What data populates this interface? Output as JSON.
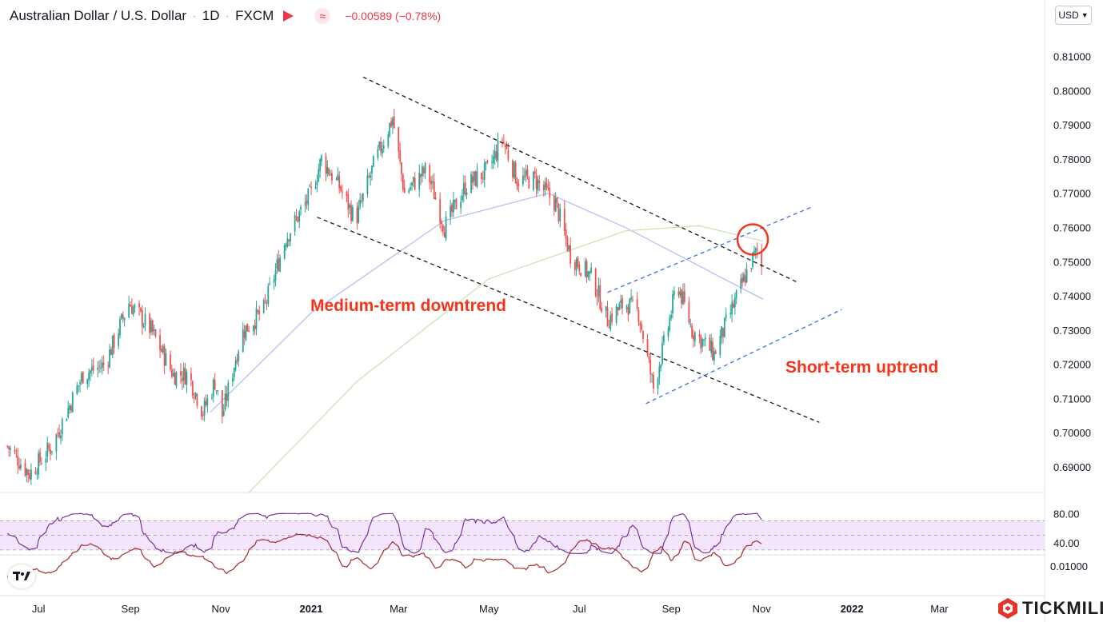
{
  "header": {
    "symbol": "Australian Dollar / U.S. Dollar",
    "interval": "1D",
    "exchange": "FXCM",
    "change": "−0.00589 (−0.78%)"
  },
  "currency_button": "USD",
  "brand": "TICKMILL",
  "colors": {
    "up": "#26a69a",
    "down": "#ef5350",
    "rsi": "#7e2fa1",
    "rsi_band": "#f3e5fb",
    "osc": "#a52b2b",
    "annotation": "#f5351b",
    "trend_black": "#000000",
    "trend_blue": "#2962ff",
    "highlight_circle": "#f5351b"
  },
  "chart_data": [
    {
      "type": "candlestick",
      "title": "Australian Dollar / U.S. Dollar",
      "x_tick_labels": [
        "Jul",
        "Sep",
        "Nov",
        "2021",
        "Mar",
        "May",
        "Jul",
        "Sep",
        "Nov",
        "2022",
        "Mar"
      ],
      "y_tick_labels": [
        "0.69000",
        "0.70000",
        "0.71000",
        "0.72000",
        "0.73000",
        "0.74000",
        "0.75000",
        "0.76000",
        "0.77000",
        "0.78000",
        "0.79000",
        "0.80000",
        "0.81000"
      ],
      "ylim": [
        0.6825,
        0.8195
      ],
      "anchor_closes": [
        [
          "2020-06-10",
          0.696
        ],
        [
          "2020-06-25",
          0.688
        ],
        [
          "2020-07-10",
          0.696
        ],
        [
          "2020-07-31",
          0.717
        ],
        [
          "2020-08-15",
          0.72
        ],
        [
          "2020-08-31",
          0.738
        ],
        [
          "2020-09-15",
          0.73
        ],
        [
          "2020-09-30",
          0.717
        ],
        [
          "2020-10-10",
          0.717
        ],
        [
          "2020-10-20",
          0.706
        ],
        [
          "2020-10-28",
          0.715
        ],
        [
          "2020-11-02",
          0.705
        ],
        [
          "2020-11-15",
          0.729
        ],
        [
          "2020-11-30",
          0.736
        ],
        [
          "2020-12-15",
          0.757
        ],
        [
          "2021-01-01",
          0.77
        ],
        [
          "2021-01-08",
          0.78
        ],
        [
          "2021-01-20",
          0.772
        ],
        [
          "2021-01-31",
          0.762
        ],
        [
          "2021-02-12",
          0.778
        ],
        [
          "2021-02-25",
          0.792
        ],
        [
          "2021-03-05",
          0.77
        ],
        [
          "2021-03-20",
          0.777
        ],
        [
          "2021-04-01",
          0.76
        ],
        [
          "2021-04-15",
          0.772
        ],
        [
          "2021-05-01",
          0.777
        ],
        [
          "2021-05-10",
          0.786
        ],
        [
          "2021-05-20",
          0.774
        ],
        [
          "2021-06-01",
          0.774
        ],
        [
          "2021-06-15",
          0.767
        ],
        [
          "2021-06-25",
          0.752
        ],
        [
          "2021-07-10",
          0.745
        ],
        [
          "2021-07-20",
          0.733
        ],
        [
          "2021-08-01",
          0.738
        ],
        [
          "2021-08-10",
          0.735
        ],
        [
          "2021-08-20",
          0.713
        ],
        [
          "2021-08-30",
          0.731
        ],
        [
          "2021-09-05",
          0.744
        ],
        [
          "2021-09-15",
          0.73
        ],
        [
          "2021-09-30",
          0.723
        ],
        [
          "2021-10-10",
          0.734
        ],
        [
          "2021-10-25",
          0.75
        ],
        [
          "2021-10-29",
          0.753
        ],
        [
          "2021-11-02",
          0.747
        ]
      ],
      "overlays": [
        {
          "kind": "moving-average",
          "values": [
            [
              0.706,
              "2020-10-25"
            ],
            [
              0.735,
              "2021-01-01"
            ],
            [
              0.762,
              "2021-04-01"
            ],
            [
              0.77,
              "2021-06-10"
            ],
            [
              0.76,
              "2021-08-01"
            ],
            [
              0.739,
              "2021-11-02"
            ]
          ]
        },
        {
          "kind": "moving-average",
          "values": [
            [
              0.682,
              "2020-11-20"
            ],
            [
              0.715,
              "2021-02-01"
            ],
            [
              0.745,
              "2021-05-01"
            ],
            [
              0.759,
              "2021-08-01"
            ],
            [
              0.7605,
              "2021-09-20"
            ],
            [
              0.756,
              "2021-11-02"
            ]
          ]
        }
      ]
    },
    {
      "type": "line",
      "series": [
        {
          "name": "",
          "values_note": ""
        }
      ],
      "y_tick_labels": [
        "80.00",
        "40.00"
      ],
      "ylim": [
        20,
        100
      ]
    },
    {
      "type": "line",
      "y_tick_labels": [
        "0.01000"
      ]
    }
  ],
  "annotations": [
    {
      "text": "Medium-term downtrend"
    },
    {
      "text": "Short-term uptrend"
    }
  ],
  "trendlines": [
    {
      "color": "trend_black",
      "style": "dashed",
      "from": [
        "2021-02-05",
        0.804
      ],
      "to": [
        "2021-11-25",
        0.744
      ]
    },
    {
      "color": "trend_black",
      "style": "dashed",
      "from": [
        "2021-01-05",
        0.763
      ],
      "to": [
        "2021-12-10",
        0.703
      ]
    },
    {
      "color": "trend_blue",
      "style": "dashed",
      "from": [
        "2021-07-20",
        0.741
      ],
      "to": [
        "2021-12-05",
        0.766
      ]
    },
    {
      "color": "trend_blue",
      "style": "dashed",
      "from": [
        "2021-08-15",
        0.7085
      ],
      "to": [
        "2021-12-25",
        0.736
      ]
    }
  ]
}
